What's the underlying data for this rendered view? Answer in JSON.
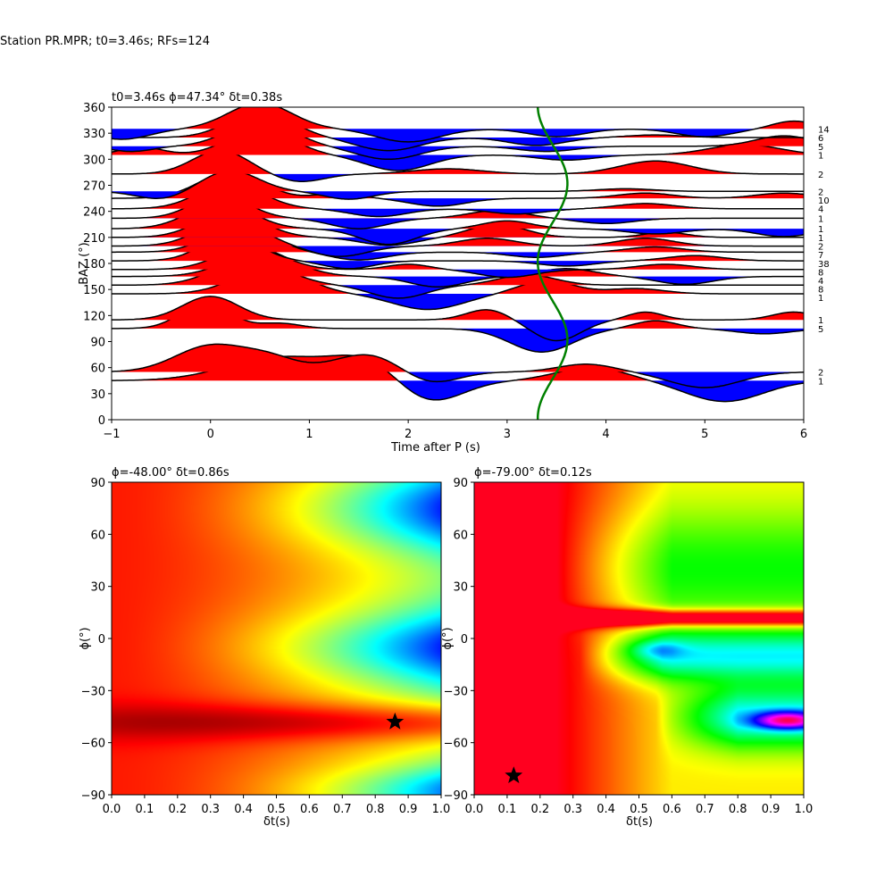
{
  "figure": {
    "suptitle": "Station PR.MPR; t0=3.46s; RFs=124"
  },
  "chart_data": [
    {
      "type": "line",
      "name": "receiver-function-wiggles",
      "title": "t0=3.46s ϕ=47.34° δt=0.38s",
      "xlabel": "Time after P (s)",
      "ylabel": "BAZ (°)",
      "xlim": [
        -1,
        6
      ],
      "ylim": [
        0,
        360
      ],
      "xticks": [
        -1,
        0,
        1,
        2,
        3,
        4,
        5,
        6
      ],
      "yticks": [
        0,
        30,
        60,
        90,
        120,
        150,
        180,
        210,
        240,
        270,
        300,
        330,
        360
      ],
      "fill_colors": {
        "positive": "#ff0000",
        "negative": "#0000ff"
      },
      "line_color": "#000000",
      "traces": [
        {
          "baz": 45,
          "count": "1",
          "bumps": [
            [
              0.7,
              0.9,
              0.75
            ],
            [
              1.65,
              0.9,
              0.5
            ],
            [
              2.15,
              -1.0,
              0.5
            ],
            [
              3.85,
              0.5,
              0.5
            ],
            [
              5.2,
              -0.8,
              0.55
            ]
          ]
        },
        {
          "baz": 55,
          "count": "2",
          "bumps": [
            [
              0.0,
              1.0,
              0.5
            ],
            [
              0.6,
              0.5,
              0.4
            ],
            [
              1.6,
              0.7,
              0.5
            ],
            [
              2.2,
              -0.5,
              0.4
            ],
            [
              3.8,
              0.3,
              0.4
            ],
            [
              5.0,
              -0.6,
              0.5
            ]
          ]
        },
        {
          "baz": 105,
          "count": "5",
          "bumps": [
            [
              -0.05,
              1.0,
              0.35
            ],
            [
              0.7,
              0.2,
              0.3
            ],
            [
              3.35,
              -0.9,
              0.45
            ],
            [
              4.5,
              0.3,
              0.3
            ],
            [
              5.6,
              -0.2,
              0.4
            ]
          ]
        },
        {
          "baz": 115,
          "count": "1",
          "bumps": [
            [
              0.0,
              0.9,
              0.4
            ],
            [
              2.8,
              0.4,
              0.3
            ],
            [
              3.5,
              -0.8,
              0.35
            ],
            [
              4.4,
              0.3,
              0.25
            ],
            [
              5.9,
              0.3,
              0.3
            ]
          ]
        },
        {
          "baz": 145,
          "count": "1",
          "bumps": [
            [
              0.6,
              1.0,
              0.5
            ],
            [
              2.2,
              -0.6,
              0.5
            ],
            [
              3.4,
              0.5,
              0.4
            ],
            [
              4.3,
              0.2,
              0.4
            ]
          ]
        },
        {
          "baz": 155,
          "count": "8",
          "bumps": [
            [
              0.4,
              1.0,
              0.5
            ],
            [
              1.9,
              -0.5,
              0.4
            ],
            [
              3.2,
              0.4,
              0.4
            ]
          ]
        },
        {
          "baz": 165,
          "count": "4",
          "bumps": [
            [
              0.5,
              0.9,
              0.5
            ],
            [
              2.3,
              -0.4,
              0.4
            ],
            [
              3.6,
              0.3,
              0.4
            ],
            [
              4.8,
              -0.3,
              0.4
            ]
          ]
        },
        {
          "baz": 173,
          "count": "8",
          "bumps": [
            [
              0.4,
              0.9,
              0.45
            ],
            [
              2.0,
              0.2,
              0.3
            ],
            [
              3.0,
              -0.3,
              0.4
            ],
            [
              4.6,
              0.2,
              0.4
            ]
          ]
        },
        {
          "baz": 183,
          "count": "38",
          "bumps": [
            [
              0.2,
              1.0,
              0.4
            ],
            [
              1.4,
              -0.3,
              0.35
            ],
            [
              3.6,
              -0.2,
              0.4
            ],
            [
              4.9,
              0.2,
              0.4
            ]
          ]
        },
        {
          "baz": 193,
          "count": "7",
          "bumps": [
            [
              0.3,
              1.0,
              0.45
            ],
            [
              1.5,
              -0.3,
              0.4
            ],
            [
              3.3,
              -0.2,
              0.4
            ],
            [
              4.5,
              0.2,
              0.4
            ]
          ]
        },
        {
          "baz": 200,
          "count": "2",
          "bumps": [
            [
              0.2,
              1.0,
              0.45
            ],
            [
              1.3,
              -0.4,
              0.4
            ],
            [
              2.8,
              0.3,
              0.4
            ],
            [
              4.4,
              0.3,
              0.4
            ]
          ]
        },
        {
          "baz": 210,
          "count": "1",
          "bumps": [
            [
              0.2,
              1.0,
              0.45
            ],
            [
              1.8,
              -0.3,
              0.4
            ],
            [
              2.9,
              0.5,
              0.4
            ],
            [
              4.6,
              0.2,
              0.3
            ]
          ]
        },
        {
          "baz": 220,
          "count": "1",
          "bumps": [
            [
              0.1,
              1.0,
              0.45
            ],
            [
              1.8,
              -0.6,
              0.4
            ],
            [
              3.0,
              0.3,
              0.35
            ],
            [
              4.5,
              -0.2,
              0.4
            ],
            [
              5.8,
              -0.3,
              0.4
            ]
          ]
        },
        {
          "baz": 232,
          "count": "1",
          "bumps": [
            [
              0.1,
              0.9,
              0.4
            ],
            [
              1.5,
              -0.4,
              0.4
            ],
            [
              2.9,
              0.3,
              0.4
            ],
            [
              4.0,
              -0.2,
              0.4
            ]
          ]
        },
        {
          "baz": 243,
          "count": "4",
          "bumps": [
            [
              0.2,
              1.0,
              0.45
            ],
            [
              1.7,
              -0.3,
              0.4
            ],
            [
              3.1,
              -0.2,
              0.4
            ],
            [
              4.4,
              0.2,
              0.4
            ]
          ]
        },
        {
          "baz": 255,
          "count": "10",
          "bumps": [
            [
              0.2,
              1.0,
              0.45
            ],
            [
              1.3,
              0.2,
              0.3
            ],
            [
              2.3,
              -0.3,
              0.4
            ],
            [
              4.4,
              0.2,
              0.4
            ],
            [
              5.8,
              0.2,
              0.4
            ]
          ]
        },
        {
          "baz": 263,
          "count": "2",
          "bumps": [
            [
              -0.5,
              -0.3,
              0.35
            ],
            [
              0.2,
              0.8,
              0.4
            ],
            [
              1.4,
              -0.3,
              0.35
            ],
            [
              4.2,
              0.1,
              0.4
            ]
          ]
        },
        {
          "baz": 283,
          "count": "2",
          "bumps": [
            [
              0.1,
              0.9,
              0.4
            ],
            [
              0.9,
              -0.3,
              0.35
            ],
            [
              2.4,
              0.2,
              0.5
            ],
            [
              4.5,
              0.5,
              0.5
            ]
          ]
        },
        {
          "baz": 305,
          "count": "1",
          "bumps": [
            [
              -0.7,
              0.3,
              0.3
            ],
            [
              0.5,
              1.0,
              0.45
            ],
            [
              1.9,
              -0.6,
              0.45
            ],
            [
              3.6,
              -0.2,
              0.4
            ],
            [
              5.4,
              0.4,
              0.5
            ]
          ]
        },
        {
          "baz": 315,
          "count": "5",
          "bumps": [
            [
              -0.8,
              -0.2,
              0.3
            ],
            [
              0.5,
              1.0,
              0.45
            ],
            [
              1.8,
              -0.5,
              0.45
            ],
            [
              3.4,
              -0.2,
              0.4
            ],
            [
              5.8,
              0.4,
              0.4
            ]
          ]
        },
        {
          "baz": 325,
          "count": "6",
          "bumps": [
            [
              0.5,
              1.0,
              0.45
            ],
            [
              1.8,
              -0.5,
              0.45
            ],
            [
              3.3,
              -0.3,
              0.4
            ],
            [
              4.5,
              0.1,
              0.4
            ]
          ]
        },
        {
          "baz": 335,
          "count": "14",
          "bumps": [
            [
              -0.9,
              -0.4,
              0.4
            ],
            [
              0.5,
              1.0,
              0.45
            ],
            [
              2.0,
              -0.5,
              0.45
            ],
            [
              3.5,
              -0.3,
              0.4
            ],
            [
              5.0,
              -0.3,
              0.4
            ],
            [
              5.9,
              0.3,
              0.3
            ]
          ]
        }
      ],
      "green_curve": {
        "x_center": 3.46,
        "amplitude": 0.15,
        "period_baz": 180,
        "phase_baz": 47,
        "color": "#008000"
      }
    },
    {
      "type": "heatmap",
      "name": "energy-grid-left",
      "title": "ϕ=-48.00° δt=0.86s",
      "xlabel": "δt(s)",
      "ylabel": "ϕ(°)",
      "xlim": [
        0.0,
        1.0
      ],
      "ylim": [
        -90,
        90
      ],
      "xticks": [
        0.0,
        0.1,
        0.2,
        0.3,
        0.4,
        0.5,
        0.6,
        0.7,
        0.8,
        0.9,
        1.0
      ],
      "yticks": [
        -90,
        -60,
        -30,
        0,
        30,
        60,
        90
      ],
      "colormap": "jet",
      "best": {
        "dt": 0.86,
        "phi": -48.0
      }
    },
    {
      "type": "heatmap",
      "name": "energy-grid-right",
      "title": "ϕ=-79.00° δt=0.12s",
      "xlabel": "δt(s)",
      "ylabel": "ϕ(°)",
      "xlim": [
        0.0,
        1.0
      ],
      "ylim": [
        -90,
        90
      ],
      "xticks": [
        0.0,
        0.1,
        0.2,
        0.3,
        0.4,
        0.5,
        0.6,
        0.7,
        0.8,
        0.9,
        1.0
      ],
      "yticks": [
        -90,
        -60,
        -30,
        0,
        30,
        60,
        90
      ],
      "colormap": "hsv",
      "best": {
        "dt": 0.12,
        "phi": -79.0
      }
    }
  ]
}
